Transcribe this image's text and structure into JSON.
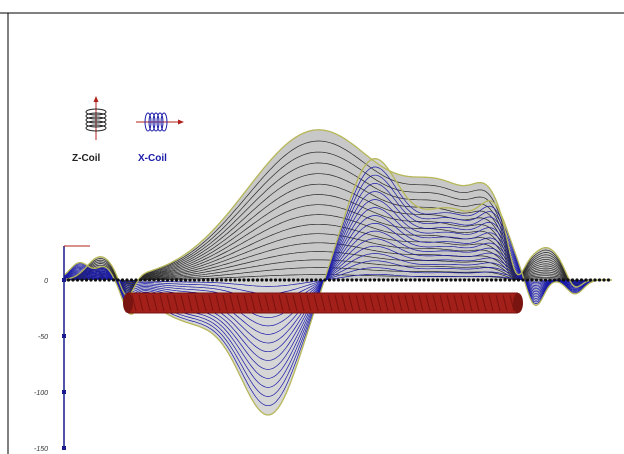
{
  "legend": {
    "z_coil_label": "Z-Coil",
    "x_coil_label": "X-Coil"
  },
  "axis": {
    "ticks": [
      {
        "label": "0",
        "value": 0
      },
      {
        "label": "-50",
        "value": -50
      },
      {
        "label": "-100",
        "value": -100
      },
      {
        "label": "-150",
        "value": -150
      }
    ]
  },
  "colors": {
    "z_curves": "#2a2a2a",
    "x_curves": "#1a1aa8",
    "fill": "#c8c8c8",
    "envelope": "#b8b85a",
    "pipe": "#a31f1a",
    "pipe_dark": "#7a1410",
    "axis": "#1a1a8a",
    "z_label": "#222222",
    "x_label": "#1a1aa8",
    "accent_red": "#b0201a"
  },
  "chart_data": {
    "type": "line",
    "title": "",
    "xlabel": "",
    "ylabel": "",
    "ylim": [
      -150,
      60
    ],
    "yticks": [
      0,
      -50,
      -100,
      -150
    ],
    "grid": false,
    "legend_placement": "top-left",
    "series": [
      {
        "name": "Z-Coil"
      },
      {
        "name": "X-Coil"
      }
    ]
  }
}
